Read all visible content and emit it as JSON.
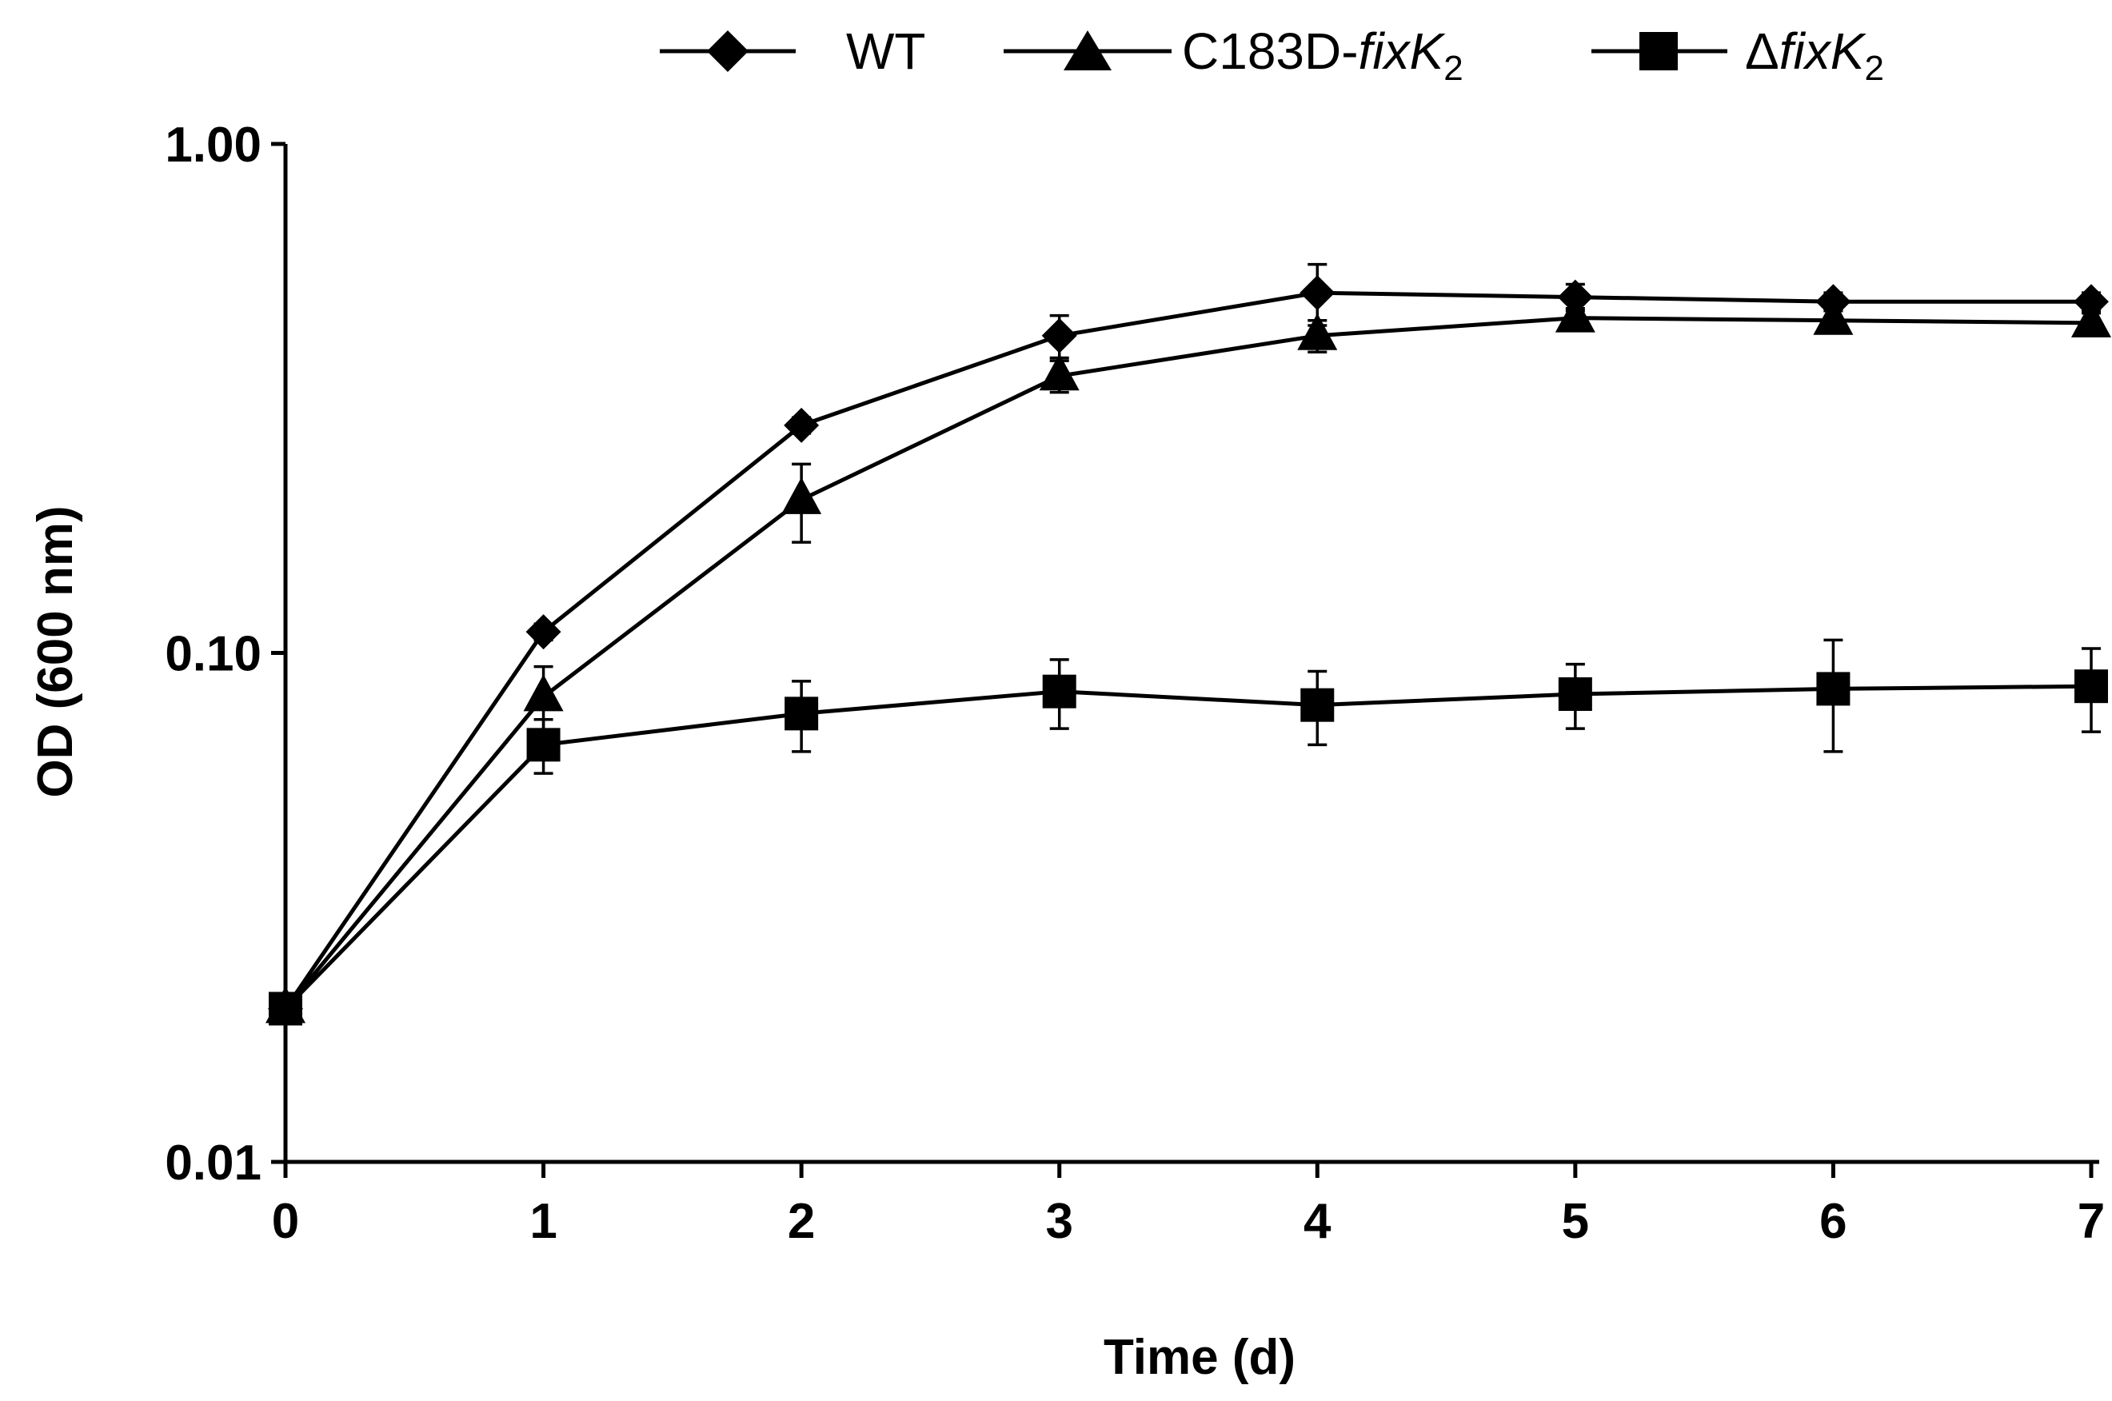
{
  "chart_data": {
    "type": "line",
    "title": "",
    "xlabel": "Time (d)",
    "ylabel": "OD (600 nm)",
    "yscale": "log",
    "xlim": [
      0,
      7
    ],
    "ylim": [
      0.01,
      1.0
    ],
    "x": [
      0,
      1,
      2,
      3,
      4,
      5,
      6,
      7
    ],
    "x_ticks": [
      "0",
      "1",
      "2",
      "3",
      "4",
      "5",
      "6",
      "7"
    ],
    "y_ticks": [
      {
        "value": 1.0,
        "label": "1.00"
      },
      {
        "value": 0.1,
        "label": "0.10"
      },
      {
        "value": 0.01,
        "label": "0.01"
      }
    ],
    "grid": false,
    "legend_position": "top",
    "series": [
      {
        "name": "WT",
        "legend_main": "WT",
        "legend_italic": "",
        "legend_sub": "",
        "marker": "diamond",
        "values": [
          0.02,
          0.11,
          0.28,
          0.42,
          0.51,
          0.5,
          0.49,
          0.49
        ],
        "errors": [
          0,
          0.004,
          0.01,
          0.04,
          0.07,
          0.03,
          0.02,
          0.02
        ]
      },
      {
        "name": "C183D-fixK2",
        "legend_main": "C183D-",
        "legend_italic": "fixK",
        "legend_sub": "2",
        "marker": "triangle",
        "values": [
          0.02,
          0.082,
          0.2,
          0.35,
          0.42,
          0.455,
          0.45,
          0.445
        ],
        "errors": [
          0,
          0.012,
          0.035,
          0.025,
          0.03,
          0.02,
          0.02,
          0.02
        ]
      },
      {
        "name": "ΔfixK2",
        "legend_main": "Δ",
        "legend_italic": "fixK",
        "legend_sub": "2",
        "marker": "square",
        "values": [
          0.02,
          0.066,
          0.076,
          0.084,
          0.079,
          0.083,
          0.085,
          0.086
        ],
        "errors": [
          0,
          0.008,
          0.012,
          0.013,
          0.013,
          0.012,
          0.021,
          0.016
        ]
      }
    ]
  }
}
